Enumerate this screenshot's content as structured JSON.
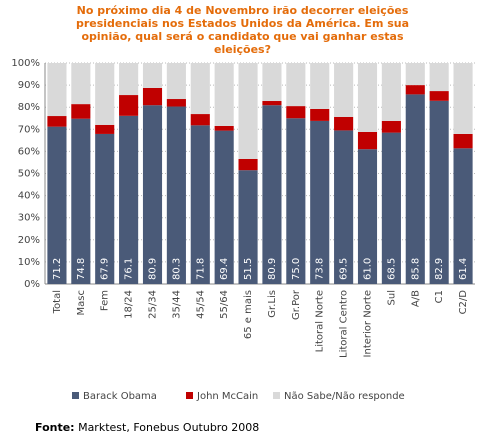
{
  "chart_data": {
    "type": "stacked_bar",
    "title": "No próximo dia 4 de Novembro irão decorrer eleições presidenciais nos Estados Unidos da América. Em sua opinião, qual será o candidato que vai ganhar estas eleições?",
    "categories": [
      "Total",
      "Masc",
      "Fem",
      "18/24",
      "25/34",
      "35/44",
      "45/54",
      "55/64",
      "65 e mais",
      "Gr.Lis",
      "Gr.Por",
      "Litoral Norte",
      "Litoral Centro",
      "Interior Norte",
      "Sul",
      "A/B",
      "C1",
      "C2/D"
    ],
    "series": [
      {
        "name": "Barack Obama",
        "color": "#4a5a78",
        "values": [
          71.2,
          74.8,
          67.9,
          76.1,
          80.9,
          80.3,
          71.8,
          69.4,
          51.5,
          80.9,
          75,
          73.8,
          69.5,
          61,
          68.5,
          85.8,
          82.9,
          61.4
        ],
        "value_labels": [
          "71.2",
          "74.8",
          "67.9",
          "76.1",
          "80.9",
          "80.3",
          "71.8",
          "69.4",
          "51.5",
          "80.9",
          "75.0",
          "73.8",
          "69.5",
          "61.0",
          "68.5",
          "85.8",
          "82.9",
          "61.4"
        ]
      },
      {
        "name": "John McCain",
        "color": "#c00000",
        "values": [
          4.8,
          6.6,
          4.1,
          9.4,
          7.8,
          3.4,
          5.1,
          2.1,
          5.1,
          1.9,
          5.5,
          5.4,
          6.1,
          7.8,
          5.3,
          4.2,
          4.4,
          6.5
        ]
      },
      {
        "name": "Não Sabe/Não responde",
        "color": "#d9d9d9",
        "values": [
          24.0,
          18.6,
          28.0,
          14.5,
          11.3,
          16.3,
          23.1,
          28.5,
          43.4,
          17.2,
          19.5,
          20.8,
          24.4,
          31.2,
          26.2,
          10.0,
          12.7,
          32.1
        ]
      }
    ],
    "ylim": [
      0,
      100
    ],
    "yticks": [
      {
        "value": 0,
        "label": "0%"
      },
      {
        "value": 10,
        "label": "10%"
      },
      {
        "value": 20,
        "label": "20%"
      },
      {
        "value": 30,
        "label": "30%"
      },
      {
        "value": 40,
        "label": "40%"
      },
      {
        "value": 50,
        "label": "50%"
      },
      {
        "value": 60,
        "label": "60%"
      },
      {
        "value": 70,
        "label": "70%"
      },
      {
        "value": 80,
        "label": "80%"
      },
      {
        "value": 90,
        "label": "90%"
      },
      {
        "value": 100,
        "label": "100%"
      }
    ],
    "grid": true,
    "legend": "bottom",
    "source_label": "Fonte:",
    "source": "Marktest, Fonebus Outubro 2008"
  }
}
